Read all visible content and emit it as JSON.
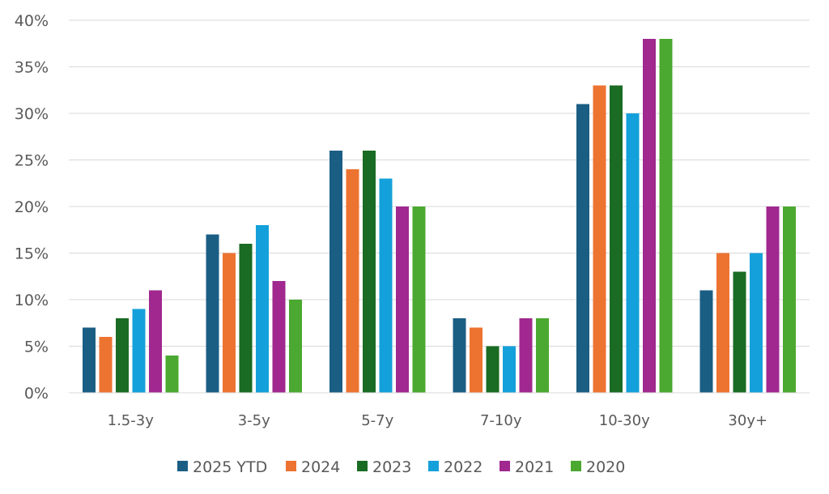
{
  "chart_data": {
    "type": "bar",
    "title": "",
    "xlabel": "",
    "ylabel": "",
    "ylim": [
      0,
      40
    ],
    "ytick_step": 5,
    "ytick_format": "percent",
    "grid": true,
    "legend_position": "bottom",
    "categories": [
      "1.5-3y",
      "3-5y",
      "5-7y",
      "7-10y",
      "10-30y",
      "30y+"
    ],
    "series": [
      {
        "name": "2025 YTD",
        "color": "#1a5e84",
        "values": [
          7,
          17,
          26,
          8,
          31,
          11
        ]
      },
      {
        "name": "2024",
        "color": "#ed7331",
        "values": [
          6,
          15,
          24,
          7,
          33,
          15
        ]
      },
      {
        "name": "2023",
        "color": "#1a6b23",
        "values": [
          8,
          16,
          26,
          5,
          33,
          13
        ]
      },
      {
        "name": "2022",
        "color": "#14a0da",
        "values": [
          9,
          18,
          23,
          5,
          30,
          15
        ]
      },
      {
        "name": "2021",
        "color": "#a0288f",
        "values": [
          11,
          12,
          20,
          8,
          38,
          20
        ]
      },
      {
        "name": "2020",
        "color": "#4ba830",
        "values": [
          4,
          10,
          20,
          8,
          38,
          20
        ]
      }
    ]
  }
}
